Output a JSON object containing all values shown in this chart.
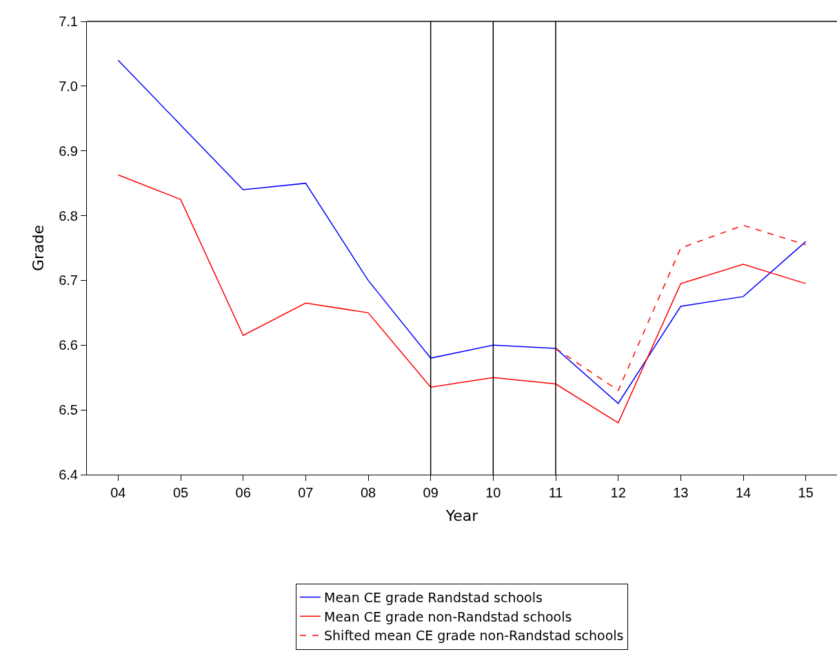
{
  "chart_data": {
    "type": "line",
    "xlabel": "Year",
    "ylabel": "Grade",
    "categories": [
      "04",
      "05",
      "06",
      "07",
      "08",
      "09",
      "10",
      "11",
      "12",
      "13",
      "14",
      "15"
    ],
    "series": [
      {
        "name": "Mean CE grade Randstad schools",
        "color": "#0000ff",
        "values": [
          7.04,
          6.94,
          6.84,
          6.85,
          6.7,
          6.58,
          6.6,
          6.595,
          6.51,
          6.66,
          6.675,
          6.76
        ]
      },
      {
        "name": "Mean CE grade non-Randstad schools",
        "color": "#ff0000",
        "values": [
          6.863,
          6.825,
          6.615,
          6.665,
          6.65,
          6.535,
          6.55,
          6.54,
          6.48,
          6.695,
          6.725,
          6.695
        ]
      },
      {
        "name": "Shifted mean CE grade non-Randstad schools",
        "color": "#ff0000",
        "line_style": "dashed",
        "values": [
          null,
          null,
          null,
          null,
          null,
          null,
          null,
          6.595,
          6.53,
          6.75,
          6.785,
          6.755
        ]
      }
    ],
    "ylim": [
      6.4,
      7.1
    ],
    "yticks": [
      6.4,
      6.5,
      6.6,
      6.7,
      6.8,
      6.9,
      {
        "value": 7,
        "label": "7.0"
      },
      7.1
    ],
    "ref_lines": [
      {
        "axis": "x",
        "value": "09",
        "color": "#000000"
      },
      {
        "axis": "x",
        "value": "10",
        "color": "#000000"
      },
      {
        "axis": "x",
        "value": "11",
        "color": "#000000"
      }
    ],
    "legend": "bottom",
    "marker": "none",
    "line_style": "solid"
  }
}
